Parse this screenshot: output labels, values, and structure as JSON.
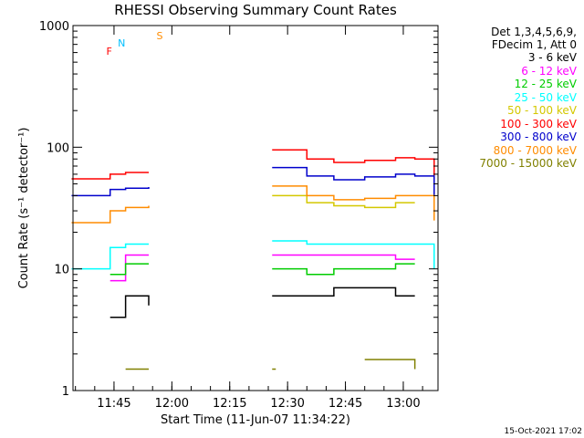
{
  "chart_data": {
    "type": "line",
    "title": "RHESSI Observing Summary Count Rates",
    "xlabel": "Start Time (11-Jun-07 11:34:22)",
    "ylabel": "Count Rate (s⁻¹ detector⁻¹)",
    "y_scale": "log",
    "ylim": [
      1,
      1000
    ],
    "y_ticks": [
      1,
      10,
      100,
      1000
    ],
    "y_tick_labels": [
      "1",
      "10",
      "100",
      "1000"
    ],
    "x_range_minutes": [
      "11:34:22",
      "13:09:00"
    ],
    "x_ticks": [
      "11:45",
      "12:00",
      "12:15",
      "12:30",
      "12:45",
      "13:00"
    ],
    "header_lines": [
      "Det 1,3,4,5,6,9,",
      "FDecim 1, Att 0"
    ],
    "flag_labels": [
      {
        "text": "F",
        "color": "#ff0000"
      },
      {
        "text": "N",
        "color": "#00bfff"
      },
      {
        "text": "S",
        "color": "#ff8c00"
      }
    ],
    "series": [
      {
        "name": "3 - 6 keV",
        "color": "#000000",
        "values": [
          null,
          4,
          6,
          5,
          null,
          6,
          6,
          7,
          7,
          6,
          6,
          null
        ]
      },
      {
        "name": "6 - 12 keV",
        "color": "#ff00ff",
        "values": [
          null,
          8,
          13,
          13,
          null,
          13,
          13,
          13,
          13,
          12,
          12,
          null
        ]
      },
      {
        "name": "12 - 25 keV",
        "color": "#00cc00",
        "values": [
          null,
          9,
          11,
          11,
          null,
          10,
          9,
          10,
          10,
          11,
          11,
          null
        ]
      },
      {
        "name": "25 - 50 keV",
        "color": "#00ffff",
        "values": [
          10,
          15,
          16,
          16,
          null,
          17,
          16,
          16,
          16,
          16,
          16,
          10
        ]
      },
      {
        "name": "50 - 100 keV",
        "color": "#d4c800",
        "values": [
          null,
          null,
          null,
          null,
          null,
          40,
          35,
          33,
          32,
          35,
          35,
          null
        ]
      },
      {
        "name": "100 - 300 keV",
        "color": "#ff0000",
        "values": [
          55,
          60,
          62,
          62,
          null,
          95,
          80,
          75,
          78,
          82,
          80,
          55
        ]
      },
      {
        "name": "300 - 800 keV",
        "color": "#0000cc",
        "values": [
          40,
          45,
          46,
          47,
          null,
          68,
          58,
          54,
          57,
          60,
          58,
          38
        ]
      },
      {
        "name": "800 - 7000 keV",
        "color": "#ff8c00",
        "values": [
          24,
          30,
          32,
          33,
          null,
          48,
          40,
          37,
          38,
          40,
          40,
          25
        ]
      },
      {
        "name": "7000 - 15000 keV",
        "color": "#808000",
        "values": [
          null,
          null,
          1.5,
          1.5,
          null,
          1.5,
          null,
          null,
          1.8,
          1.8,
          1.5,
          null
        ]
      }
    ],
    "x_minutes_for_values": [
      "11:34",
      "11:44",
      "11:48",
      "11:54",
      "12:10",
      "12:26",
      "12:35",
      "12:42",
      "12:50",
      "12:58",
      "13:03",
      "13:08"
    ],
    "legend_placement": "right",
    "grid": false,
    "footer_stamp": "15-Oct-2021 17:02"
  }
}
